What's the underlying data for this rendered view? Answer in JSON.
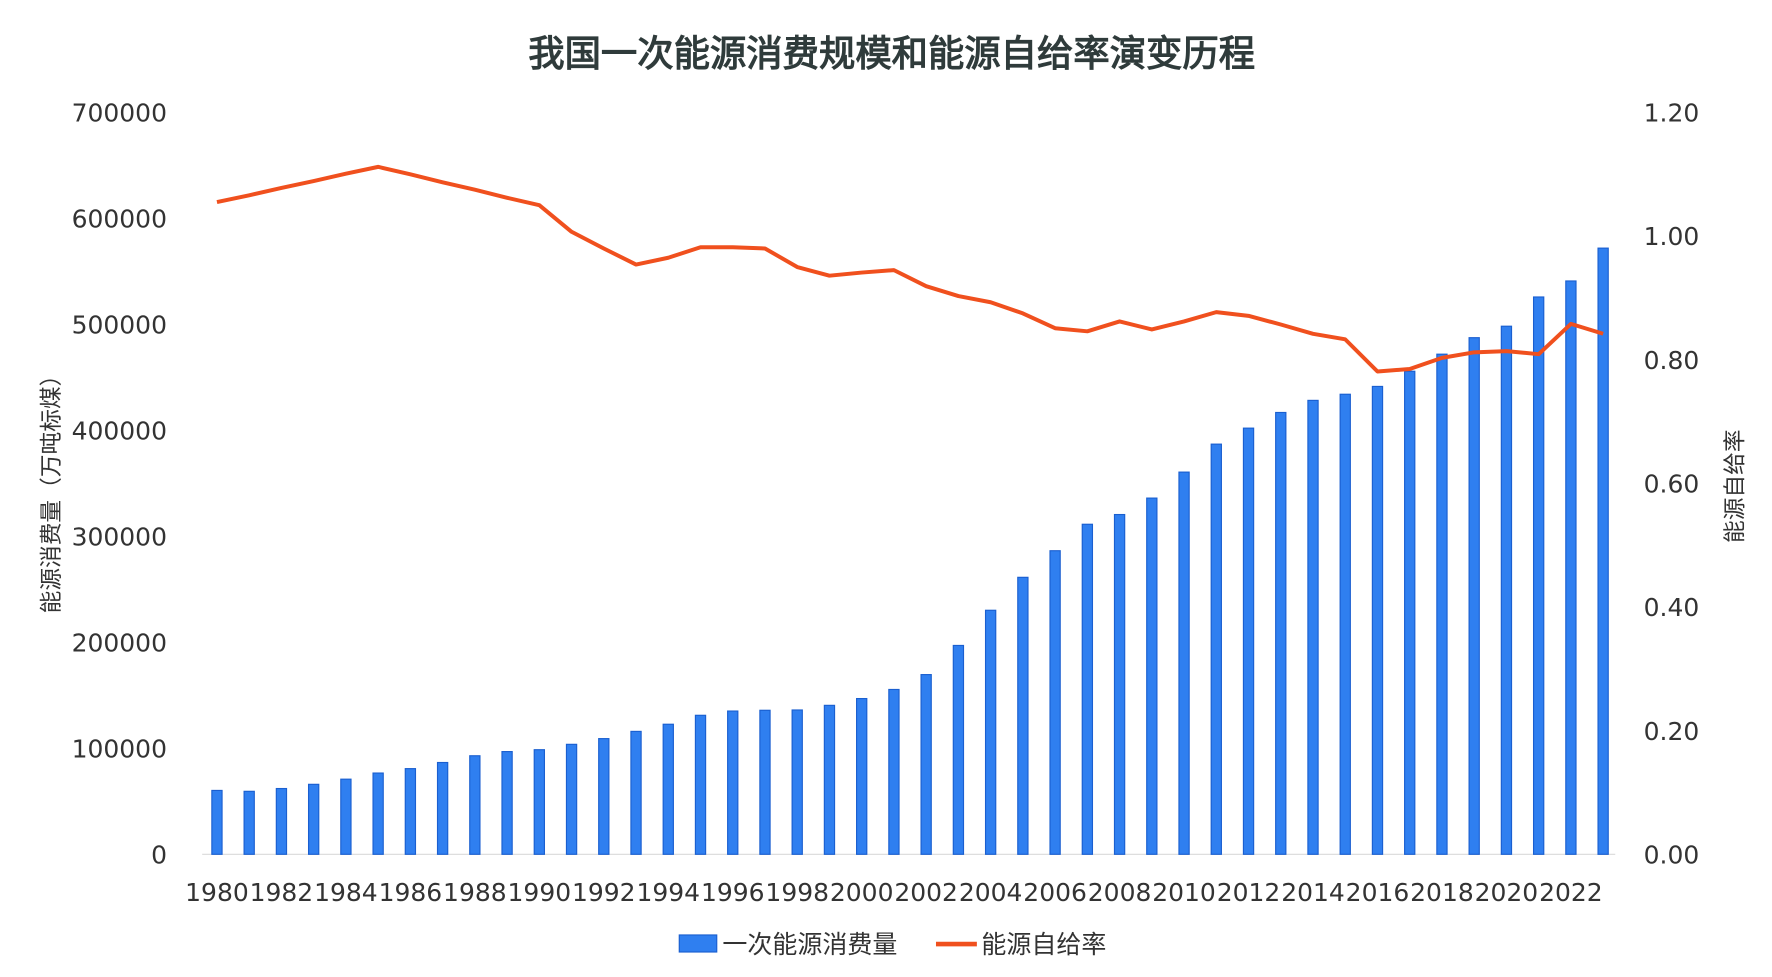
{
  "chart_data": {
    "type": "bar+line",
    "title": "我国一次能源消费规模和能源自给率演变历程",
    "ylabel": "能源消费量（万吨标煤）",
    "y2label": "能源自给率",
    "ylim": [
      0,
      700000
    ],
    "y2lim": [
      0,
      1.2
    ],
    "yticks": [
      "0",
      "100000",
      "200000",
      "300000",
      "400000",
      "500000",
      "600000",
      "700000"
    ],
    "y2ticks": [
      "0.00",
      "0.20",
      "0.40",
      "0.60",
      "0.80",
      "1.00",
      "1.20"
    ],
    "grid": false,
    "legend_position": "bottom",
    "categories": [
      1980,
      1981,
      1982,
      1983,
      1984,
      1985,
      1986,
      1987,
      1988,
      1989,
      1990,
      1991,
      1992,
      1993,
      1994,
      1995,
      1996,
      1997,
      1998,
      1999,
      2000,
      2001,
      2002,
      2003,
      2004,
      2005,
      2006,
      2007,
      2008,
      2009,
      2010,
      2011,
      2012,
      2013,
      2014,
      2015,
      2016,
      2017,
      2018,
      2019,
      2020,
      2021,
      2022,
      2023
    ],
    "xtick_labels": [
      "1980",
      "1982",
      "1984",
      "1986",
      "1988",
      "1990",
      "1992",
      "1994",
      "1996",
      "1998",
      "2000",
      "2002",
      "2004",
      "2006",
      "2008",
      "2010",
      "2012",
      "2014",
      "2016",
      "2018",
      "2020",
      "2022"
    ],
    "series": [
      {
        "name": "一次能源消费量",
        "type": "bar",
        "axis": "left",
        "color": "#2f7ff0",
        "values": [
          60275,
          59447,
          62067,
          66040,
          70904,
          76682,
          80850,
          86632,
          92997,
          96934,
          98703,
          103783,
          109170,
          115993,
          122737,
          131176,
          135192,
          135909,
          136184,
          140569,
          146964,
          155547,
          169577,
          197083,
          230281,
          261369,
          286467,
          311442,
          320611,
          336126,
          360648,
          387043,
          402138,
          416913,
          428334,
          434113,
          441492,
          455827,
          471925,
          487488,
          498314,
          525896,
          541000,
          572000
        ]
      },
      {
        "name": "能源自给率",
        "type": "line",
        "axis": "right",
        "color": "#f0501e",
        "values": [
          1.055,
          1.066,
          1.078,
          1.089,
          1.101,
          1.112,
          1.1,
          1.087,
          1.075,
          1.062,
          1.05,
          1.007,
          0.98,
          0.954,
          0.965,
          0.982,
          0.982,
          0.98,
          0.95,
          0.936,
          0.941,
          0.945,
          0.919,
          0.903,
          0.893,
          0.875,
          0.851,
          0.846,
          0.862,
          0.849,
          0.862,
          0.877,
          0.871,
          0.857,
          0.842,
          0.833,
          0.781,
          0.785,
          0.803,
          0.812,
          0.814,
          0.809,
          0.858,
          0.842
        ]
      }
    ]
  }
}
